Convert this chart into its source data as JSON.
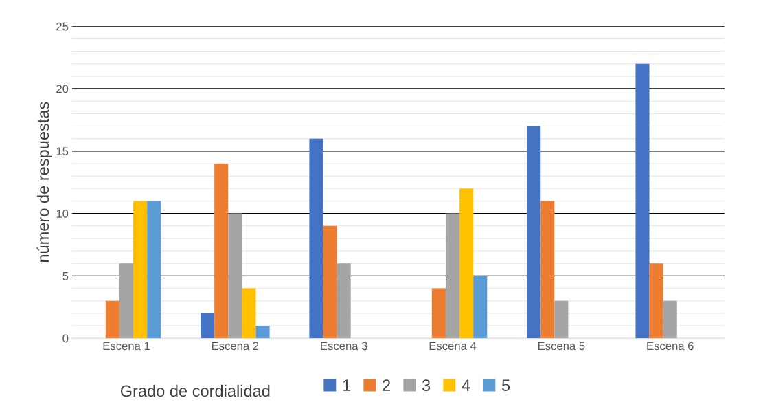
{
  "chart_data": {
    "type": "bar",
    "ylabel": "número de respuestas",
    "legend_title": "Grado de cordialidad",
    "categories": [
      "Escena 1",
      "Escena 2",
      "Escena 3",
      "Escena 4",
      "Escena 5",
      "Escena 6"
    ],
    "series": [
      {
        "name": "1",
        "color": "#4472c4",
        "values": [
          0,
          2,
          16,
          0,
          17,
          22
        ]
      },
      {
        "name": "2",
        "color": "#ed7d31",
        "values": [
          3,
          14,
          9,
          4,
          11,
          6
        ]
      },
      {
        "name": "3",
        "color": "#a5a5a5",
        "values": [
          6,
          10,
          6,
          10,
          3,
          3
        ]
      },
      {
        "name": "4",
        "color": "#ffc000",
        "values": [
          11,
          4,
          0,
          12,
          0,
          0
        ]
      },
      {
        "name": "5",
        "color": "#5b9bd5",
        "values": [
          11,
          1,
          0,
          5,
          0,
          0
        ]
      }
    ],
    "ylim": [
      0,
      25
    ],
    "yticks": [
      0,
      5,
      10,
      15,
      20,
      25
    ],
    "grid": "y",
    "legend": "bottom"
  }
}
